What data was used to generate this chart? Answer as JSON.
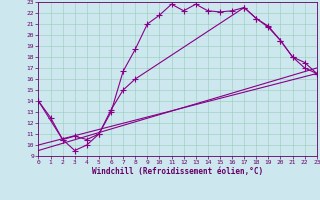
{
  "xlabel": "Windchill (Refroidissement éolien,°C)",
  "background_color": "#cce8ee",
  "grid_color": "#99ccbb",
  "line_color": "#880088",
  "xlim": [
    0,
    23
  ],
  "ylim": [
    9,
    23
  ],
  "yticks": [
    9,
    10,
    11,
    12,
    13,
    14,
    15,
    16,
    17,
    18,
    19,
    20,
    21,
    22,
    23
  ],
  "xticks": [
    0,
    1,
    2,
    3,
    4,
    5,
    6,
    7,
    8,
    9,
    10,
    11,
    12,
    13,
    14,
    15,
    16,
    17,
    18,
    19,
    20,
    21,
    22,
    23
  ],
  "series": [
    {
      "x": [
        0,
        1,
        2,
        3,
        4,
        5,
        6,
        7,
        8,
        9,
        10,
        11,
        12,
        13,
        14,
        15,
        16,
        17,
        18,
        19,
        20,
        21,
        22,
        23
      ],
      "y": [
        14,
        12.5,
        10.5,
        9.5,
        10,
        11,
        13,
        16.7,
        18.7,
        21,
        21.8,
        22.8,
        22.2,
        22.8,
        22.2,
        22.1,
        22.2,
        22.5,
        21.5,
        20.8,
        19.5,
        18.0,
        17.0,
        16.5
      ],
      "marker": true
    },
    {
      "x": [
        0,
        2,
        3,
        4,
        5,
        6,
        7,
        8,
        17,
        18,
        19,
        20,
        21,
        22,
        23
      ],
      "y": [
        14,
        10.5,
        10.8,
        10.5,
        11,
        13.2,
        15,
        16,
        22.5,
        21.5,
        20.7,
        19.5,
        18.0,
        17.5,
        16.5
      ],
      "marker": true
    },
    {
      "x": [
        0,
        23
      ],
      "y": [
        10,
        16.5
      ],
      "marker": false
    },
    {
      "x": [
        0,
        23
      ],
      "y": [
        9.5,
        17.0
      ],
      "marker": false
    }
  ]
}
